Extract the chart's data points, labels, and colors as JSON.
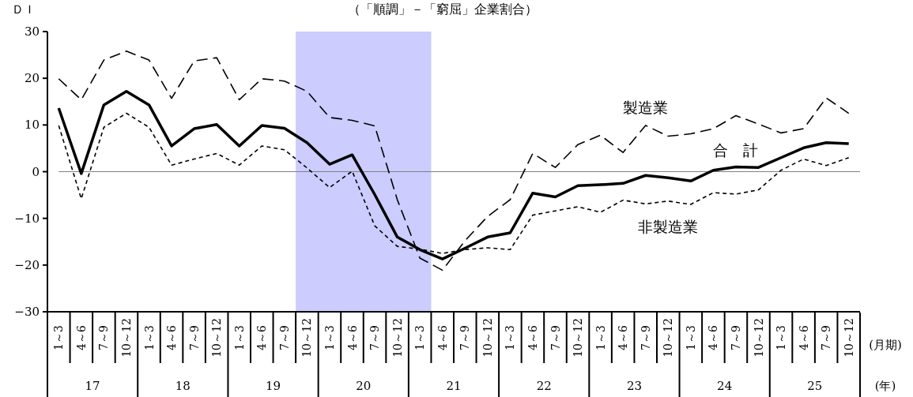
{
  "chart_data": {
    "type": "line",
    "title": "（「順調」－「窮屈」企業割合）",
    "ylabel": "ＤＩ",
    "xlabel": "(月期)",
    "categories": [
      "1～3",
      "4～6",
      "7～9",
      "10～12",
      "1～3",
      "4～6",
      "7～9",
      "10～12",
      "1～3",
      "4～6",
      "7～9",
      "10～12",
      "1～3",
      "4～6",
      "7～9",
      "10～12",
      "1～3",
      "4～6",
      "7～9",
      "10～12",
      "1～3",
      "4～6",
      "7～9",
      "10～12",
      "1～3",
      "4～6",
      "7～9",
      "10～12",
      "1～3",
      "4～6",
      "7～9",
      "10～12",
      "1～3",
      "4～6",
      "7～9",
      "10～12"
    ],
    "series": [
      {
        "name": "製造業",
        "color": "#000000",
        "line_style": "dashed",
        "values": [
          19.9,
          15.4,
          23.9,
          25.8,
          23.9,
          15.7,
          23.7,
          24.4,
          15.4,
          19.9,
          19.4,
          17.2,
          11.6,
          11.0,
          9.8,
          -6.0,
          -18.5,
          -21.1,
          -14.8,
          -9.6,
          -6.0,
          3.9,
          0.9,
          5.8,
          7.8,
          4.1,
          9.9,
          7.6,
          8.1,
          9.2,
          12.0,
          10.2,
          8.3,
          9.2,
          15.8,
          12.5
        ]
      },
      {
        "name": "合　計",
        "color": "#000000",
        "line_style": "solid",
        "values": [
          13.6,
          -0.4,
          14.3,
          17.2,
          14.3,
          5.5,
          9.2,
          10.1,
          5.5,
          9.9,
          9.3,
          6.2,
          1.6,
          3.6,
          -4.9,
          -14.0,
          -16.7,
          -18.7,
          -16.4,
          -14.0,
          -13.1,
          -4.6,
          -5.4,
          -3.0,
          -2.8,
          -2.5,
          -0.8,
          -1.3,
          -2.0,
          0.3,
          1.0,
          0.9,
          3.0,
          5.1,
          6.2,
          6.0
        ]
      },
      {
        "name": "非製造業",
        "color": "#000000",
        "line_style": "dotted",
        "values": [
          9.9,
          -5.8,
          9.5,
          12.5,
          9.5,
          1.4,
          2.7,
          3.9,
          1.4,
          5.5,
          4.7,
          0.8,
          -3.4,
          0.1,
          -11.6,
          -16.0,
          -16.6,
          -17.5,
          -16.7,
          -16.3,
          -16.7,
          -9.3,
          -8.4,
          -7.5,
          -8.7,
          -6.1,
          -6.9,
          -6.3,
          -7.0,
          -4.5,
          -4.8,
          -3.9,
          0.3,
          2.7,
          1.3,
          3.0
        ]
      }
    ],
    "ylim": [
      -30,
      30
    ],
    "yticks": [
      {
        "value": -30,
        "label": "−30"
      },
      {
        "value": -20,
        "label": "−20"
      },
      {
        "value": -10,
        "label": "−10"
      },
      0,
      10,
      20,
      30
    ],
    "ref_lines": [
      {
        "axis": "y",
        "value": 0,
        "color": "#808080"
      }
    ],
    "annotations": [
      "17",
      "18",
      "19",
      "20",
      "21",
      "22",
      "23",
      "24",
      "25",
      "(年)"
    ],
    "grid": false,
    "legend": false,
    "marker": "none"
  }
}
